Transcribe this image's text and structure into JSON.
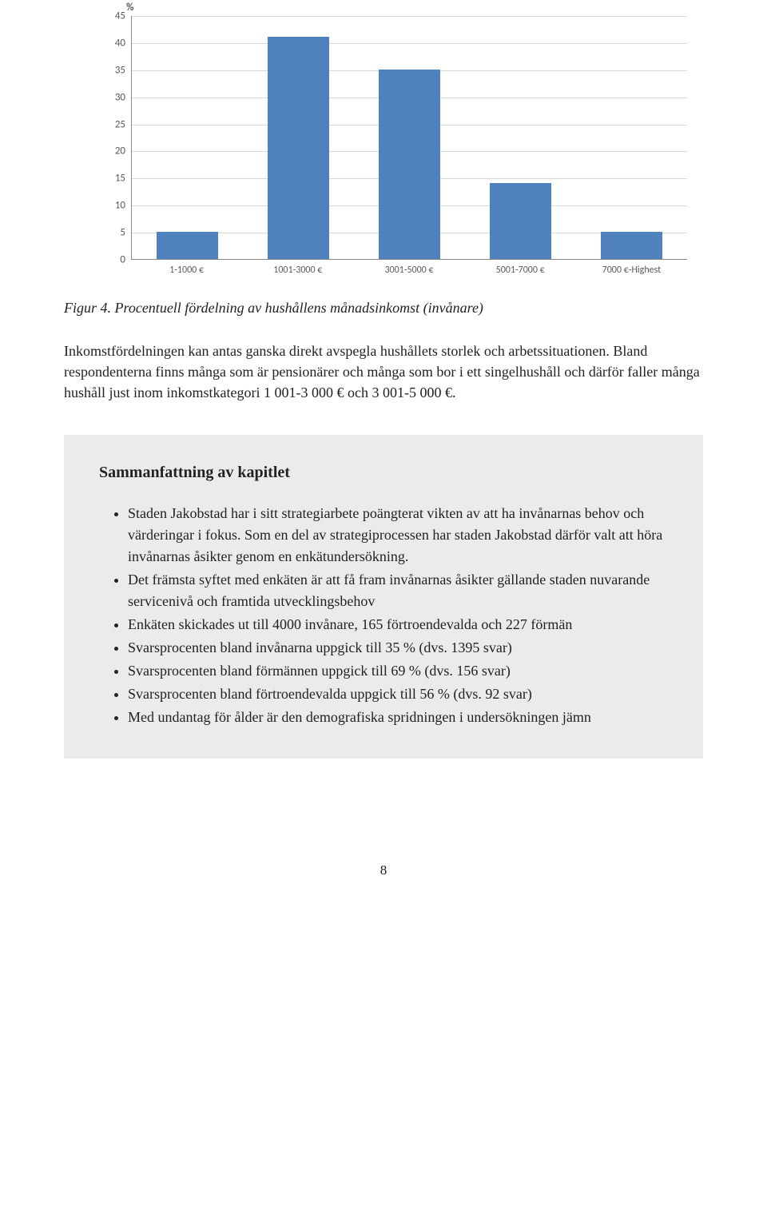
{
  "chart": {
    "type": "bar",
    "y_unit": "%",
    "categories": [
      "1-1000 €",
      "1001-3000 €",
      "3001-5000 €",
      "5001-7000 €",
      "7000 €-Highest"
    ],
    "values": [
      5,
      41,
      35,
      14,
      5
    ],
    "bar_color": "#4f81bd",
    "ylim_max": 45,
    "ytick_step": 5,
    "y_ticks": [
      0,
      5,
      10,
      15,
      20,
      25,
      30,
      35,
      40,
      45
    ],
    "grid_color": "#d9d9d9",
    "axis_color": "#888888",
    "tick_font_color": "#595959",
    "background_color": "#ffffff"
  },
  "caption": "Figur 4. Procentuell fördelning av hushållens månadsinkomst (invånare)",
  "body_paragraph": "Inkomstfördelningen kan antas ganska direkt avspegla hushållets storlek och arbetssituationen. Bland respondenterna finns många som är pensionärer och många som bor i ett singelhushåll och därför faller många hushåll just inom inkomstkategori 1 001-3 000 € och 3 001-5 000 €.",
  "summary": {
    "title": "Sammanfattning av kapitlet",
    "items": [
      "Staden Jakobstad har i sitt strategiarbete poängterat vikten av att ha invånarnas behov och värderingar i fokus. Som en del av strategiprocessen har staden Jakobstad därför valt att höra invånarnas åsikter genom en enkätundersökning.",
      "Det främsta syftet med enkäten är att få fram invånarnas åsikter gällande staden nuvarande servicenivå och framtida utvecklingsbehov",
      "Enkäten skickades ut till 4000 invånare, 165 förtroendevalda och 227 förmän",
      "Svarsprocenten bland invånarna uppgick till 35 % (dvs. 1395 svar)",
      "Svarsprocenten bland förmännen uppgick till 69 % (dvs. 156 svar)",
      "Svarsprocenten bland förtroendevalda uppgick till 56 % (dvs. 92 svar)",
      "Med undantag för ålder är den demografiska spridningen i undersökningen jämn"
    ]
  },
  "page_number": "8"
}
